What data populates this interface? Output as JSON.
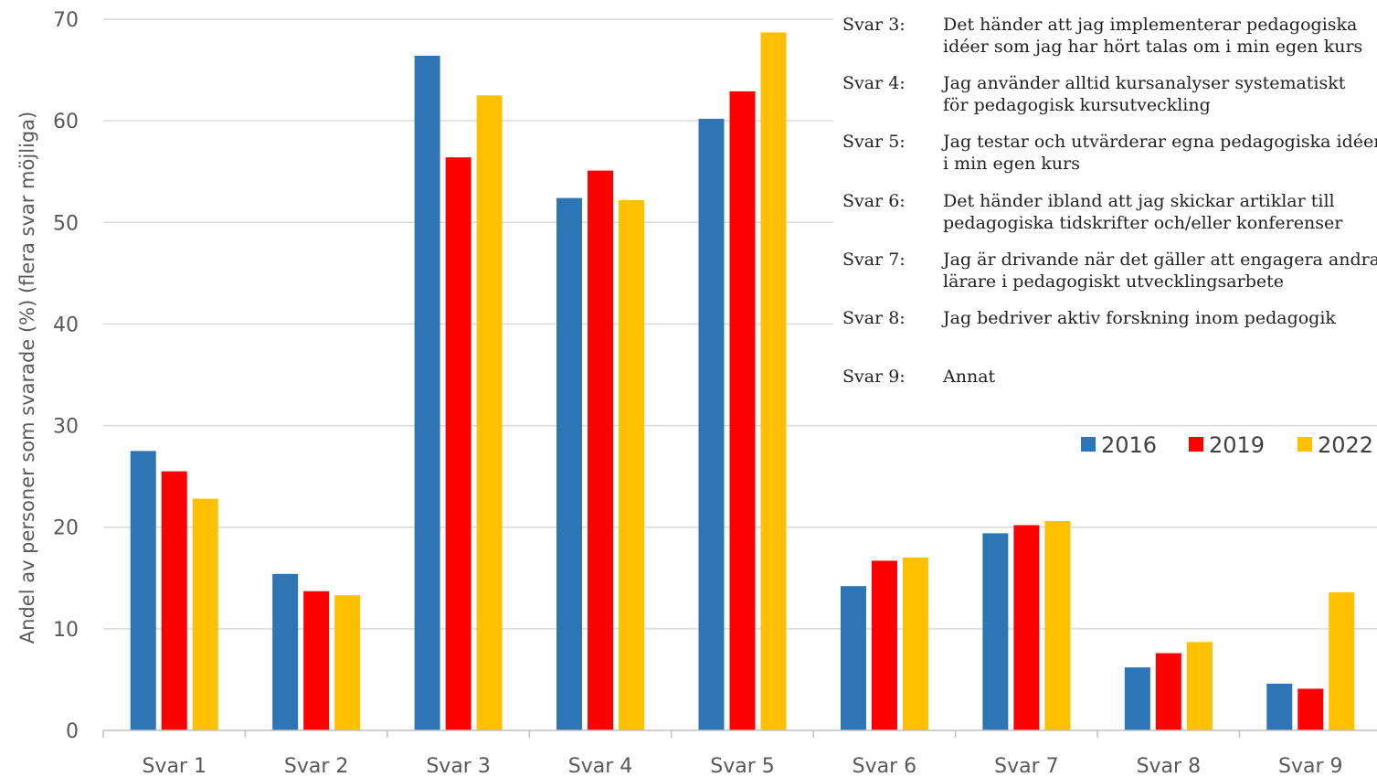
{
  "chart_data": {
    "type": "bar",
    "title": "",
    "xlabel": "",
    "ylabel": "Andel av personer som svarade (%) (flera svar möjliga)",
    "ylim": [
      0,
      70
    ],
    "yticks": [
      0,
      10,
      20,
      30,
      40,
      50,
      60,
      70
    ],
    "grid": true,
    "legend_position": "right",
    "categories": [
      "Svar 1",
      "Svar 2",
      "Svar 3",
      "Svar 4",
      "Svar 5",
      "Svar 6",
      "Svar 7",
      "Svar 8",
      "Svar 9"
    ],
    "series": [
      {
        "name": "2016",
        "color": "#2E75B6",
        "values": [
          27.5,
          15.4,
          66.4,
          52.4,
          60.2,
          14.2,
          19.4,
          6.2,
          4.6
        ]
      },
      {
        "name": "2019",
        "color": "#FF0000",
        "values": [
          25.5,
          13.7,
          56.4,
          55.1,
          62.9,
          16.7,
          20.2,
          7.6,
          4.1
        ]
      },
      {
        "name": "2022",
        "color": "#FFC000",
        "values": [
          22.8,
          13.3,
          62.5,
          52.2,
          68.7,
          17.0,
          20.6,
          8.7,
          13.6
        ]
      }
    ],
    "annotations": [
      {
        "key": "Svar 3:",
        "text": "Det händer att jag implementerar pedagogiska\nidéer som jag har hört talas om i min egen kurs"
      },
      {
        "key": "Svar 4:",
        "text": "Jag använder alltid kursanalyser systematiskt\nför pedagogisk kursutveckling"
      },
      {
        "key": "Svar 5:",
        "text": "Jag testar och utvärderar egna pedagogiska idéer\ni min egen kurs"
      },
      {
        "key": "Svar 6:",
        "text": "Det händer ibland att jag skickar artiklar till\npedagogiska tidskrifter och/eller konferenser"
      },
      {
        "key": "Svar 7:",
        "text": "Jag är drivande när det gäller att engagera andra\nlärare i pedagogiskt utvecklingsarbete"
      },
      {
        "key": "Svar 8:",
        "text": "Jag bedriver aktiv forskning inom pedagogik"
      },
      {
        "key": "Svar 9:",
        "text": "Annat"
      }
    ]
  }
}
